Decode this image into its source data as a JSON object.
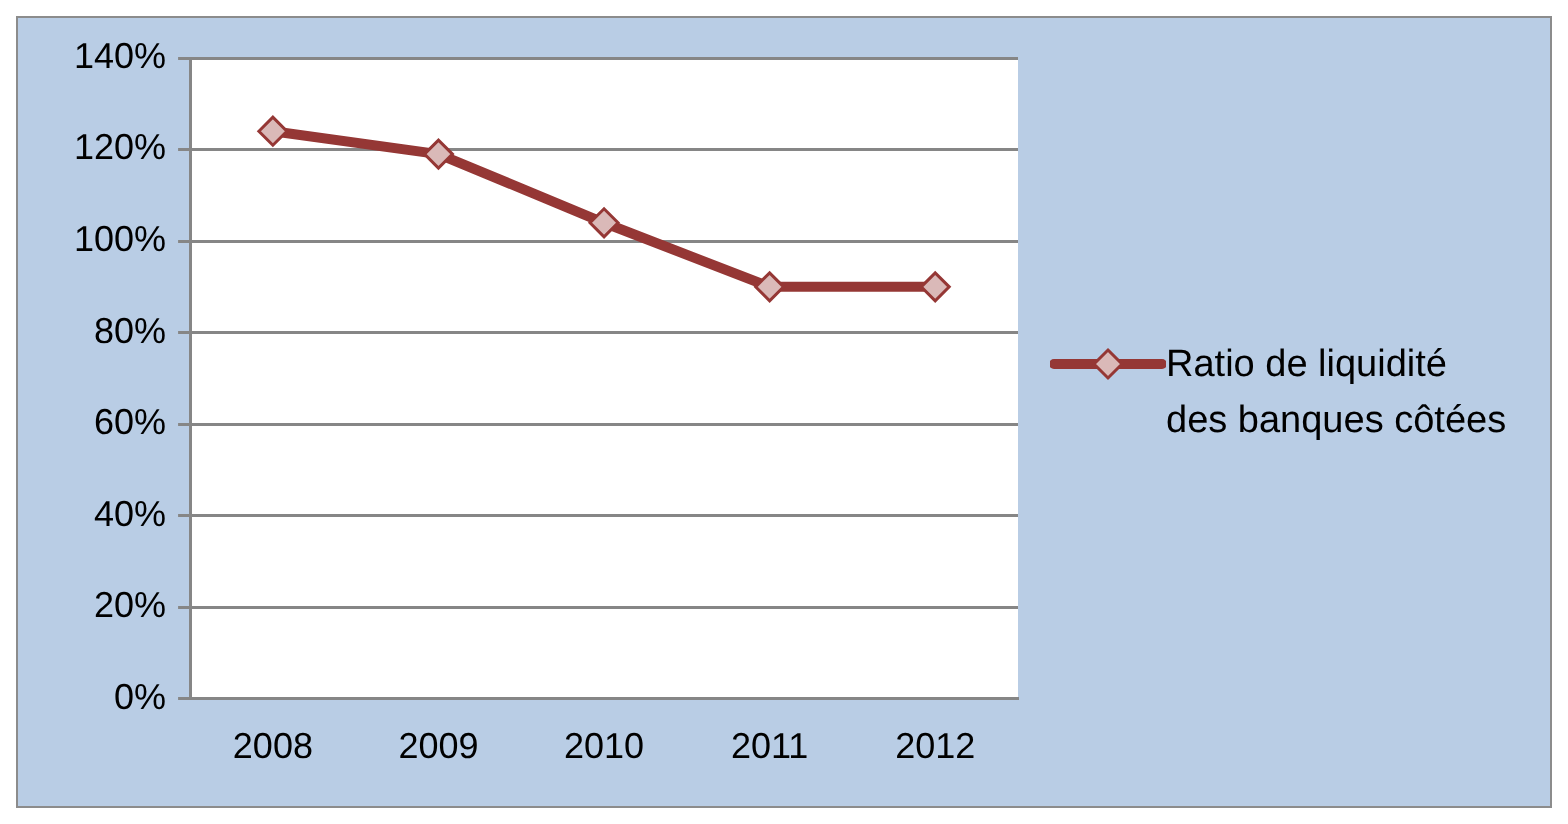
{
  "chart_data": {
    "type": "line",
    "categories": [
      "2008",
      "2009",
      "2010",
      "2011",
      "2012"
    ],
    "series": [
      {
        "name": "Ratio de liquidité des banques côtées",
        "color": "#953735",
        "values": [
          124,
          119,
          104,
          90,
          90
        ]
      }
    ],
    "ylim": [
      0,
      140
    ],
    "yticks": [
      {
        "value": 0,
        "label": "0%"
      },
      {
        "value": 20,
        "label": "20%"
      },
      {
        "value": 40,
        "label": "40%"
      },
      {
        "value": 60,
        "label": "60%"
      },
      {
        "value": 80,
        "label": "80%"
      },
      {
        "value": 100,
        "label": "100%"
      },
      {
        "value": 120,
        "label": "120%"
      },
      {
        "value": 140,
        "label": "140%"
      }
    ],
    "grid": "y",
    "legend": "right",
    "marker": "diamond",
    "line_style": "solid"
  }
}
